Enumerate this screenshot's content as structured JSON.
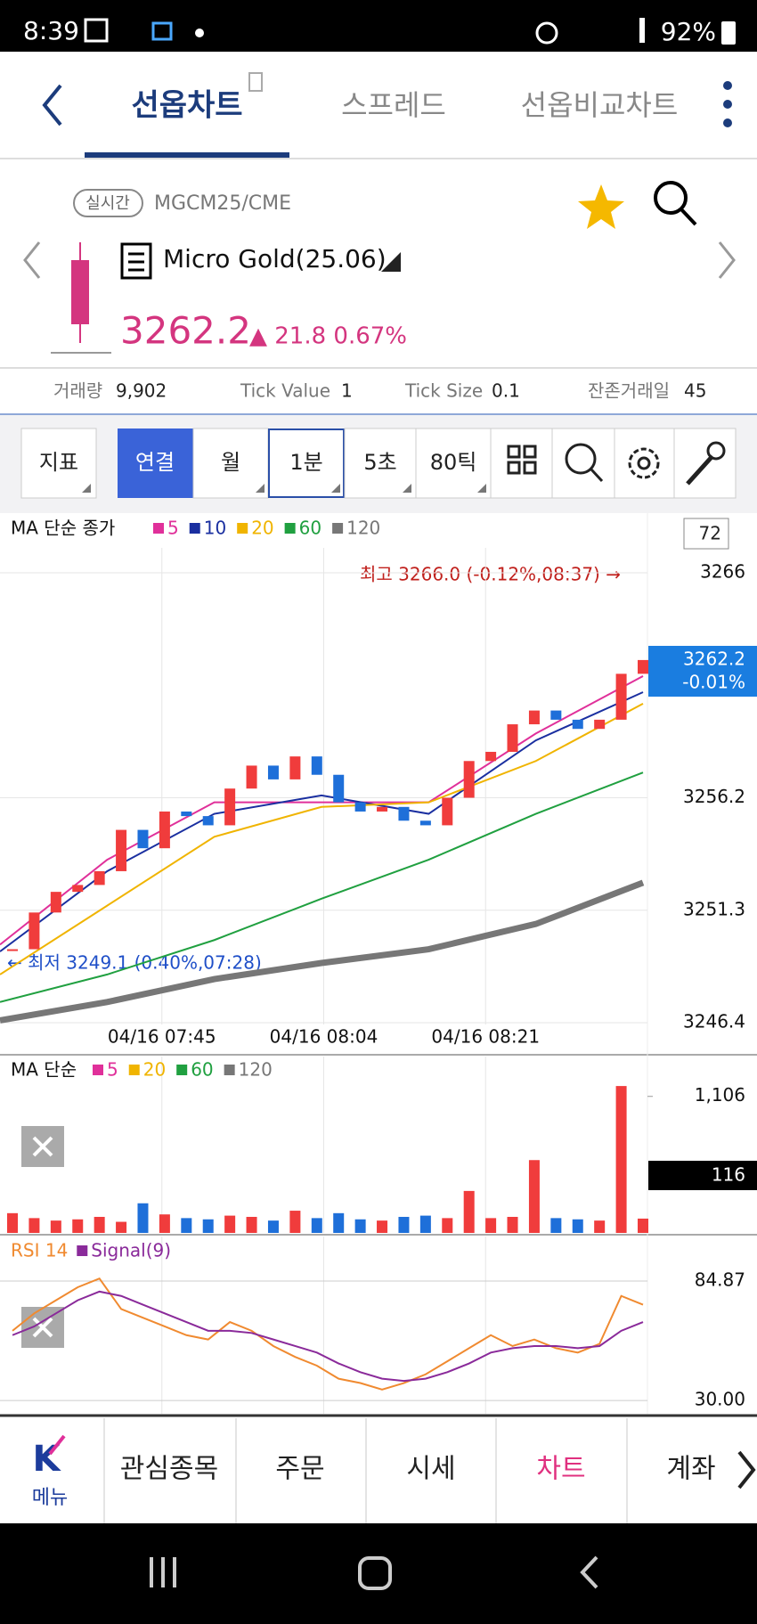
{
  "status_bar": {
    "time": "8:39",
    "battery": "92%"
  },
  "tabs": [
    "선옵차트",
    "스프레드",
    "선옵비교차트"
  ],
  "instrument": {
    "badge": "실시간",
    "code": "MGCM25/CME",
    "name": "Micro Gold(25.06)",
    "price": "3262.2",
    "change": "▲ 21.8 0.67%"
  },
  "stats": [
    {
      "label": "거래량",
      "value": "9,902"
    },
    {
      "label": "Tick Value",
      "value": "1"
    },
    {
      "label": "Tick Size",
      "value": "0.1"
    },
    {
      "label": "잔존거래일",
      "value": "45"
    }
  ],
  "toolbar": [
    "지표",
    "연결",
    "월",
    "1분",
    "5초",
    "80틱"
  ],
  "price_chart": {
    "type": "candlestick",
    "legend_title": "MA 단순 종가",
    "count": "72",
    "up_color": "#f03c3c",
    "down_color": "#1e6fd9",
    "closes": [
      3249.6,
      3251.2,
      3252.1,
      3252.4,
      3253.0,
      3254.8,
      3254.0,
      3255.6,
      3255.4,
      3255.0,
      3256.6,
      3257.6,
      3257.0,
      3258.0,
      3257.2,
      3256.0,
      3255.6,
      3255.8,
      3255.2,
      3255.0,
      3256.2,
      3257.8,
      3258.2,
      3259.4,
      3260.0,
      3259.6,
      3259.2,
      3259.6,
      3261.6,
      3262.2
    ],
    "series": [
      {
        "name": "5",
        "color": "#e0309a",
        "values": [
          3249.8,
          3253.5,
          3256.0,
          3256.0,
          3256.0,
          3259.0,
          3261.5
        ]
      },
      {
        "name": "10",
        "color": "#1a2fa0",
        "values": [
          3249.5,
          3253.0,
          3255.5,
          3256.3,
          3255.5,
          3258.7,
          3260.8
        ]
      },
      {
        "name": "20",
        "color": "#f0b400",
        "values": [
          3248.5,
          3251.5,
          3254.5,
          3255.8,
          3256.0,
          3257.8,
          3260.3
        ]
      },
      {
        "name": "60",
        "color": "#20a040",
        "values": [
          3247.3,
          3248.5,
          3250.0,
          3251.8,
          3253.5,
          3255.5,
          3257.3
        ]
      },
      {
        "name": "120",
        "color": "#777777",
        "values": [
          3246.5,
          3247.3,
          3248.3,
          3249.0,
          3249.6,
          3250.7,
          3252.5
        ]
      }
    ],
    "ylim": [
      3246.4,
      3266.0
    ],
    "yticks": [
      3246.4,
      3251.3,
      3256.2,
      3266.0
    ],
    "x_labels": [
      "04/16 07:45",
      "04/16 08:04",
      "04/16 08:21"
    ],
    "high_label": "최고 3266.0 (-0.12%,08:37) →",
    "low_label": "← 최저 3249.1 (0.40%,07:28)",
    "current_price": "3262.2",
    "current_change": "-0.01%"
  },
  "volume_chart": {
    "type": "bar",
    "legend_title": "MA 단순",
    "legend": [
      {
        "name": "5",
        "color": "#e0309a"
      },
      {
        "name": "20",
        "color": "#f0b400"
      },
      {
        "name": "60",
        "color": "#20a040"
      },
      {
        "name": "120",
        "color": "#777777"
      }
    ],
    "values": [
      160,
      120,
      100,
      110,
      130,
      90,
      240,
      150,
      120,
      110,
      140,
      130,
      100,
      180,
      120,
      160,
      110,
      100,
      130,
      140,
      120,
      340,
      120,
      130,
      590,
      120,
      110,
      100,
      1190,
      116
    ],
    "ylim": [
      0,
      1400
    ],
    "yticks": [
      {
        "value": 1106,
        "label": "1,106"
      }
    ],
    "current_value": "116"
  },
  "rsi_chart": {
    "type": "line",
    "series": [
      {
        "name": "RSI 14",
        "color": "#f08a30",
        "values": [
          62,
          70,
          76,
          82,
          86,
          72,
          68,
          64,
          60,
          58,
          66,
          62,
          55,
          50,
          46,
          40,
          38,
          35,
          38,
          42,
          48,
          54,
          60,
          55,
          58,
          54,
          52,
          56,
          78,
          74
        ]
      },
      {
        "name": "Signal(9)",
        "color": "#8a2a9a",
        "values": [
          60,
          64,
          70,
          76,
          80,
          78,
          74,
          70,
          66,
          62,
          62,
          61,
          58,
          55,
          52,
          47,
          43,
          40,
          39,
          40,
          43,
          47,
          52,
          54,
          55,
          55,
          54,
          55,
          62,
          66
        ]
      }
    ],
    "ylim": [
      23.9,
      105.3
    ],
    "yticks": [
      84.87,
      {
        "value": 30,
        "label": "30.00"
      }
    ]
  },
  "bottom_nav": [
    "메뉴",
    "관심종목",
    "주문",
    "시세",
    "차트",
    "계좌"
  ]
}
